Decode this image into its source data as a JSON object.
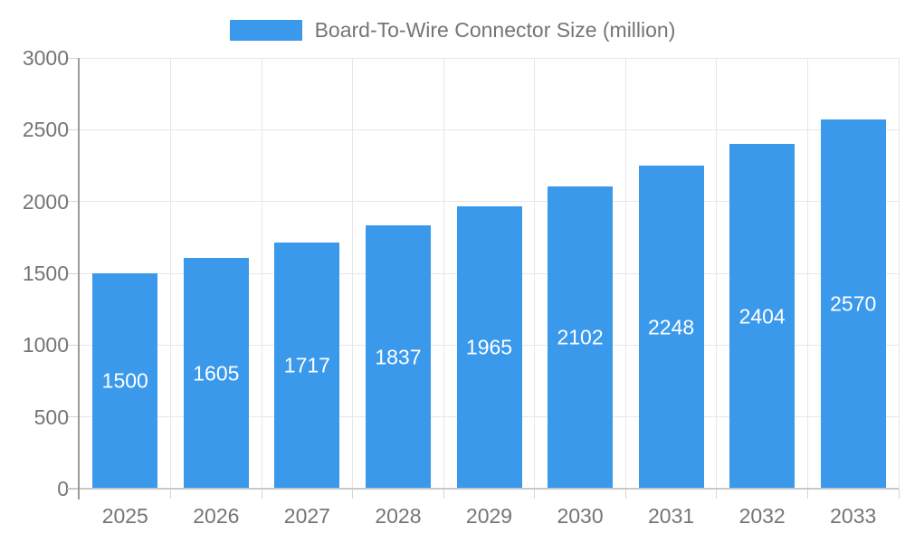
{
  "legend": {
    "label": "Board-To-Wire Connector Size (million)"
  },
  "chart_data": {
    "type": "bar",
    "title": "Board-To-Wire Connector Size (million)",
    "series_name": "Board-To-Wire Connector Size (million)",
    "categories": [
      "2025",
      "2026",
      "2027",
      "2028",
      "2029",
      "2030",
      "2031",
      "2032",
      "2033"
    ],
    "values": [
      1500,
      1605,
      1717,
      1837,
      1965,
      2102,
      2248,
      2404,
      2570
    ],
    "xlabel": "",
    "ylabel": "",
    "ylim": [
      0,
      3000
    ],
    "yticks": [
      0,
      500,
      1000,
      1500,
      2000,
      2500,
      3000
    ],
    "grid": true,
    "legend_position": "top",
    "bar_value_labels_inside": true
  },
  "colors": {
    "bar": "#3B99EC",
    "axis_line": "#9B9B9B",
    "x_axis_line": "#C9C9C9",
    "gridline": "#E7E7E7",
    "tick": "#D6D6D6",
    "text": "#757575",
    "bar_label_text": "#FFFFFF",
    "background": "#FFFFFF"
  }
}
